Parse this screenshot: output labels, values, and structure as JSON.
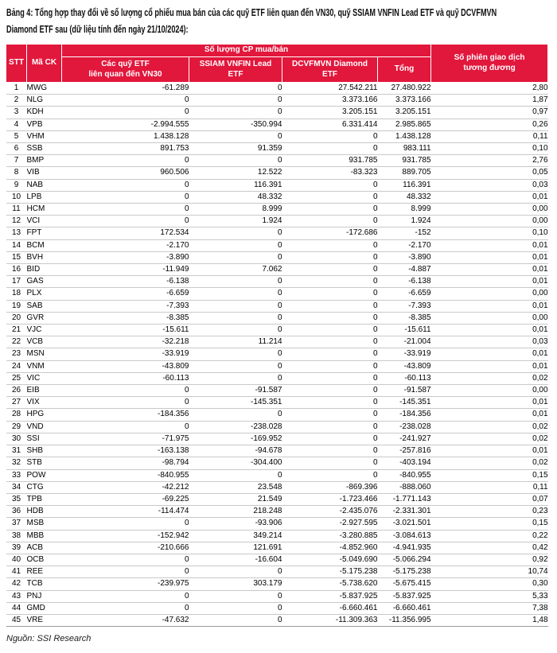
{
  "title": "Bảng 4: Tổng hợp thay đổi về số lượng cổ phiếu mua bán của các quỹ ETF liên quan đến VN30, quỹ SSIAM VNFIN Lead ETF và quỹ DCVFMVN\nDiamond ETF sau (dữ liệu tính đến ngày 21/10/2024):",
  "source": "Nguồn: SSI Research",
  "colors": {
    "header_bg": "#E2173C",
    "negative": "#F01E28",
    "positive": "#2EAC66",
    "separator": "#C9C9C9"
  },
  "table": {
    "group_header": "Số lượng CP mua/bán",
    "columns": {
      "stt": "STT",
      "ticker": "Mã CK",
      "vn30": "Các quỹ ETF\nliên quan đến VN30",
      "ssiam": "SSIAM VNFIN Lead\nETF",
      "dcvfmvn": "DCVFMVN Diamond\nETF",
      "total": "Tổng",
      "sessions": "Số phiên giao dịch\ntương đương"
    },
    "rows": [
      [
        "1",
        "MWG",
        "-61.289",
        "0",
        "27.542.211",
        "27.480.922",
        "2,80"
      ],
      [
        "2",
        "NLG",
        "0",
        "0",
        "3.373.166",
        "3.373.166",
        "1,87"
      ],
      [
        "3",
        "KDH",
        "0",
        "0",
        "3.205.151",
        "3.205.151",
        "0,97"
      ],
      [
        "4",
        "VPB",
        "-2.994.555",
        "-350.994",
        "6.331.414",
        "2.985.865",
        "0,26"
      ],
      [
        "5",
        "VHM",
        "1.438.128",
        "0",
        "0",
        "1.438.128",
        "0,11"
      ],
      [
        "6",
        "SSB",
        "891.753",
        "91.359",
        "0",
        "983.111",
        "0,10"
      ],
      [
        "7",
        "BMP",
        "0",
        "0",
        "931.785",
        "931.785",
        "2,76"
      ],
      [
        "8",
        "VIB",
        "960.506",
        "12.522",
        "-83.323",
        "889.705",
        "0,05"
      ],
      [
        "9",
        "NAB",
        "0",
        "116.391",
        "0",
        "116.391",
        "0,03"
      ],
      [
        "10",
        "LPB",
        "0",
        "48.332",
        "0",
        "48.332",
        "0,01"
      ],
      [
        "11",
        "HCM",
        "0",
        "8.999",
        "0",
        "8.999",
        "0,00"
      ],
      [
        "12",
        "VCI",
        "0",
        "1.924",
        "0",
        "1.924",
        "0,00"
      ],
      [
        "13",
        "FPT",
        "172.534",
        "0",
        "-172.686",
        "-152",
        "0,10"
      ],
      [
        "14",
        "BCM",
        "-2.170",
        "0",
        "0",
        "-2.170",
        "0,01"
      ],
      [
        "15",
        "BVH",
        "-3.890",
        "0",
        "0",
        "-3.890",
        "0,01"
      ],
      [
        "16",
        "BID",
        "-11.949",
        "7.062",
        "0",
        "-4.887",
        "0,01"
      ],
      [
        "17",
        "GAS",
        "-6.138",
        "0",
        "0",
        "-6.138",
        "0,01"
      ],
      [
        "18",
        "PLX",
        "-6.659",
        "0",
        "0",
        "-6.659",
        "0,00"
      ],
      [
        "19",
        "SAB",
        "-7.393",
        "0",
        "0",
        "-7.393",
        "0,01"
      ],
      [
        "20",
        "GVR",
        "-8.385",
        "0",
        "0",
        "-8.385",
        "0,00"
      ],
      [
        "21",
        "VJC",
        "-15.611",
        "0",
        "0",
        "-15.611",
        "0,01"
      ],
      [
        "22",
        "VCB",
        "-32.218",
        "11.214",
        "0",
        "-21.004",
        "0,03"
      ],
      [
        "23",
        "MSN",
        "-33.919",
        "0",
        "0",
        "-33.919",
        "0,01"
      ],
      [
        "24",
        "VNM",
        "-43.809",
        "0",
        "0",
        "-43.809",
        "0,01"
      ],
      [
        "25",
        "VIC",
        "-60.113",
        "0",
        "0",
        "-60.113",
        "0,02"
      ],
      [
        "26",
        "EIB",
        "0",
        "-91.587",
        "0",
        "-91.587",
        "0,00"
      ],
      [
        "27",
        "VIX",
        "0",
        "-145.351",
        "0",
        "-145.351",
        "0,01"
      ],
      [
        "28",
        "HPG",
        "-184.356",
        "0",
        "0",
        "-184.356",
        "0,01"
      ],
      [
        "29",
        "VND",
        "0",
        "-238.028",
        "0",
        "-238.028",
        "0,02"
      ],
      [
        "30",
        "SSI",
        "-71.975",
        "-169.952",
        "0",
        "-241.927",
        "0,02"
      ],
      [
        "31",
        "SHB",
        "-163.138",
        "-94.678",
        "0",
        "-257.816",
        "0,01"
      ],
      [
        "32",
        "STB",
        "-98.794",
        "-304.400",
        "0",
        "-403.194",
        "0,02"
      ],
      [
        "33",
        "POW",
        "-840.955",
        "0",
        "0",
        "-840.955",
        "0,15"
      ],
      [
        "34",
        "CTG",
        "-42.212",
        "23.548",
        "-869.396",
        "-888.060",
        "0,11"
      ],
      [
        "35",
        "TPB",
        "-69.225",
        "21.549",
        "-1.723.466",
        "-1.771.143",
        "0,07"
      ],
      [
        "36",
        "HDB",
        "-114.474",
        "218.248",
        "-2.435.076",
        "-2.331.301",
        "0,23"
      ],
      [
        "37",
        "MSB",
        "0",
        "-93.906",
        "-2.927.595",
        "-3.021.501",
        "0,15"
      ],
      [
        "38",
        "MBB",
        "-152.942",
        "349.214",
        "-3.280.885",
        "-3.084.613",
        "0,22"
      ],
      [
        "39",
        "ACB",
        "-210.666",
        "121.691",
        "-4.852.960",
        "-4.941.935",
        "0,42"
      ],
      [
        "40",
        "OCB",
        "0",
        "-16.604",
        "-5.049.690",
        "-5.066.294",
        "0,92"
      ],
      [
        "41",
        "REE",
        "0",
        "0",
        "-5.175.238",
        "-5.175.238",
        "10,74"
      ],
      [
        "42",
        "TCB",
        "-239.975",
        "303.179",
        "-5.738.620",
        "-5.675.415",
        "0,30"
      ],
      [
        "43",
        "PNJ",
        "0",
        "0",
        "-5.837.925",
        "-5.837.925",
        "5,33"
      ],
      [
        "44",
        "GMD",
        "0",
        "0",
        "-6.660.461",
        "-6.660.461",
        "7,38"
      ],
      [
        "45",
        "VRE",
        "-47.632",
        "0",
        "-11.309.363",
        "-11.356.995",
        "1,48"
      ]
    ]
  }
}
